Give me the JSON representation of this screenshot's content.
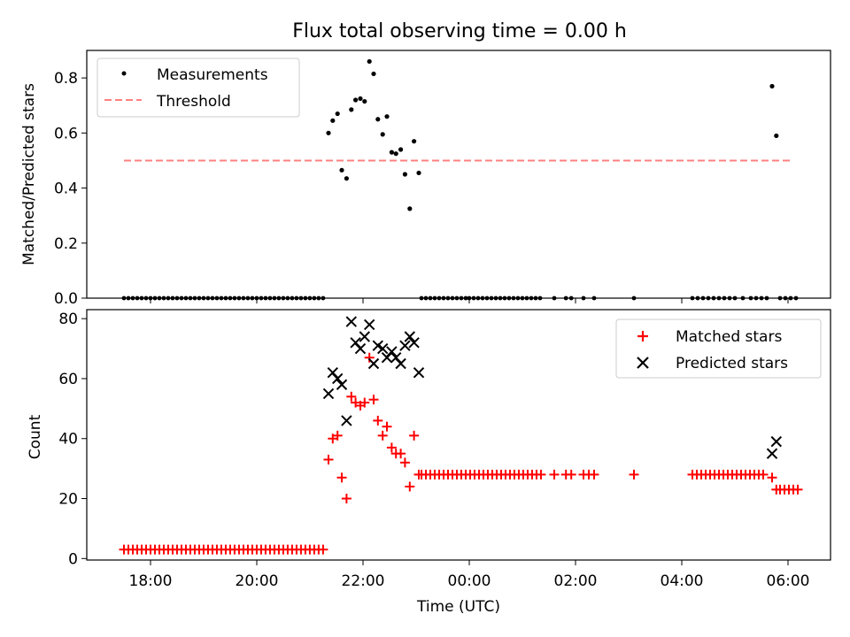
{
  "title": "Flux total observing time = 0.00 h",
  "chart_data": [
    {
      "type": "scatter",
      "ylabel": "Matched/Predicted stars",
      "xlim_hours": [
        16.8,
        30.8
      ],
      "ylim": [
        0,
        0.9
      ],
      "yticks": [
        0.0,
        0.2,
        0.4,
        0.6,
        0.8
      ],
      "ytick_labels": [
        "0.0",
        "0.2",
        "0.4",
        "0.6",
        "0.8"
      ],
      "legend_position": "top-left",
      "legend": [
        {
          "label": "Measurements",
          "marker": "dot",
          "color": "#000000"
        },
        {
          "label": "Threshold",
          "marker": "dashed-line",
          "color": "#ff8080"
        }
      ],
      "threshold": {
        "value": 0.5,
        "x_start": 17.5,
        "x_end": 30.1,
        "color": "#ff8080"
      },
      "measurements_points": [
        [
          21.35,
          0.6
        ],
        [
          21.43,
          0.645
        ],
        [
          21.52,
          0.67
        ],
        [
          21.6,
          0.465
        ],
        [
          21.69,
          0.435
        ],
        [
          21.78,
          0.685
        ],
        [
          21.86,
          0.72
        ],
        [
          21.95,
          0.725
        ],
        [
          22.03,
          0.715
        ],
        [
          22.12,
          0.86
        ],
        [
          22.2,
          0.815
        ],
        [
          22.28,
          0.65
        ],
        [
          22.37,
          0.595
        ],
        [
          22.45,
          0.66
        ],
        [
          22.54,
          0.53
        ],
        [
          22.62,
          0.525
        ],
        [
          22.71,
          0.54
        ],
        [
          22.79,
          0.45
        ],
        [
          22.88,
          0.325
        ],
        [
          22.96,
          0.57
        ],
        [
          23.05,
          0.455
        ],
        [
          29.7,
          0.77
        ],
        [
          29.78,
          0.59
        ]
      ],
      "measurements_zero_segments": [
        [
          17.5,
          21.25
        ],
        [
          23.1,
          24.0
        ],
        [
          24.0,
          25.4
        ]
      ],
      "measurements_zero_points": [
        25.6,
        25.82,
        25.92,
        26.15,
        26.35,
        27.1,
        28.2,
        28.3,
        28.4,
        28.5,
        28.6,
        28.7,
        28.8,
        28.9,
        29.0,
        29.15,
        29.3,
        29.4,
        29.5,
        29.6,
        29.85,
        29.95,
        30.05,
        30.15
      ]
    },
    {
      "type": "scatter",
      "xlabel": "Time (UTC)",
      "ylabel": "Count",
      "xlim_hours": [
        16.8,
        30.8
      ],
      "ylim": [
        -0.5,
        83
      ],
      "yticks": [
        0,
        20,
        40,
        60,
        80
      ],
      "ytick_labels": [
        "0",
        "20",
        "40",
        "60",
        "80"
      ],
      "xticks_hours": [
        18,
        20,
        22,
        24,
        26,
        28,
        30
      ],
      "xtick_labels": [
        "18:00",
        "20:00",
        "22:00",
        "00:00",
        "02:00",
        "04:00",
        "06:00"
      ],
      "legend_position": "top-right",
      "legend": [
        {
          "label": "Matched stars",
          "marker": "plus",
          "color": "#ff0000"
        },
        {
          "label": "Predicted stars",
          "marker": "x",
          "color": "#000000"
        }
      ],
      "matched_points": [
        [
          21.35,
          33
        ],
        [
          21.43,
          40
        ],
        [
          21.52,
          41
        ],
        [
          21.6,
          27
        ],
        [
          21.69,
          20
        ],
        [
          21.78,
          54
        ],
        [
          21.86,
          52
        ],
        [
          21.95,
          51
        ],
        [
          22.03,
          52
        ],
        [
          22.12,
          67
        ],
        [
          22.2,
          53
        ],
        [
          22.28,
          46
        ],
        [
          22.37,
          41
        ],
        [
          22.45,
          44
        ],
        [
          22.54,
          37
        ],
        [
          22.62,
          35
        ],
        [
          22.71,
          35
        ],
        [
          22.79,
          32
        ],
        [
          22.88,
          24
        ],
        [
          22.96,
          41
        ],
        [
          23.05,
          28
        ],
        [
          29.7,
          27
        ],
        [
          29.78,
          23
        ]
      ],
      "matched_segments": [
        {
          "from": 17.5,
          "to": 21.25,
          "y": 3
        },
        {
          "from": 23.1,
          "to": 25.4,
          "y": 28
        },
        {
          "from": 28.2,
          "to": 29.6,
          "y": 28
        },
        {
          "from": 29.85,
          "to": 30.2,
          "y": 23
        }
      ],
      "matched_extra_points": [
        [
          25.6,
          28
        ],
        [
          25.82,
          28
        ],
        [
          25.92,
          28
        ],
        [
          26.15,
          28
        ],
        [
          26.25,
          28
        ],
        [
          26.35,
          28
        ],
        [
          27.1,
          28
        ]
      ],
      "predicted_points": [
        [
          21.35,
          55
        ],
        [
          21.43,
          62
        ],
        [
          21.52,
          60
        ],
        [
          21.6,
          58
        ],
        [
          21.69,
          46
        ],
        [
          21.78,
          79
        ],
        [
          21.86,
          72
        ],
        [
          21.95,
          70
        ],
        [
          22.03,
          74
        ],
        [
          22.12,
          78
        ],
        [
          22.2,
          65
        ],
        [
          22.28,
          71
        ],
        [
          22.37,
          70
        ],
        [
          22.45,
          67
        ],
        [
          22.54,
          69
        ],
        [
          22.62,
          67
        ],
        [
          22.71,
          65
        ],
        [
          22.79,
          71
        ],
        [
          22.88,
          74
        ],
        [
          22.96,
          72
        ],
        [
          23.05,
          62
        ],
        [
          29.7,
          35
        ],
        [
          29.78,
          39
        ]
      ]
    }
  ]
}
